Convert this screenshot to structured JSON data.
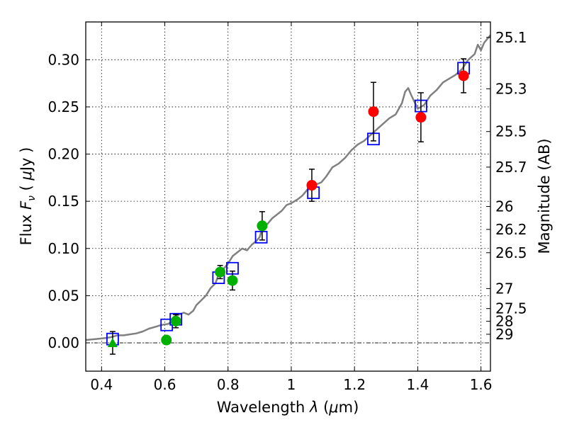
{
  "chart_data": {
    "type": "scatter",
    "xlabel": "Wavelength  λ (μm)",
    "ylabel": "Flux  F_ν  ( μJy )",
    "ylabel_right": "Magnitude (AB)",
    "xlim": [
      0.35,
      1.63
    ],
    "ylim": [
      -0.03,
      0.34
    ],
    "grid": true,
    "x_ticks": [
      {
        "value": 0.4,
        "label": "0.4"
      },
      {
        "value": 0.6,
        "label": "0.6"
      },
      {
        "value": 0.8,
        "label": "0.8"
      },
      {
        "value": 1.0,
        "label": "1"
      },
      {
        "value": 1.2,
        "label": "1.2"
      },
      {
        "value": 1.4,
        "label": "1.4"
      },
      {
        "value": 1.6,
        "label": "1.6"
      }
    ],
    "y_ticks": [
      {
        "value": 0.0,
        "label": "0.00"
      },
      {
        "value": 0.05,
        "label": "0.05"
      },
      {
        "value": 0.1,
        "label": "0.10"
      },
      {
        "value": 0.15,
        "label": "0.15"
      },
      {
        "value": 0.2,
        "label": "0.20"
      },
      {
        "value": 0.25,
        "label": "0.25"
      },
      {
        "value": 0.3,
        "label": "0.30"
      }
    ],
    "right_ticks": [
      {
        "flux": 0.3236,
        "label": "25.1"
      },
      {
        "flux": 0.2692,
        "label": "25.3"
      },
      {
        "flux": 0.2239,
        "label": "25.5"
      },
      {
        "flux": 0.1862,
        "label": "25.7"
      },
      {
        "flux": 0.1445,
        "label": "26"
      },
      {
        "flux": 0.1202,
        "label": "26.2"
      },
      {
        "flux": 0.0955,
        "label": "26.5"
      },
      {
        "flux": 0.0575,
        "label": "27"
      },
      {
        "flux": 0.0363,
        "label": "27.5"
      },
      {
        "flux": 0.0229,
        "label": "28"
      },
      {
        "flux": 0.0091,
        "label": "29"
      }
    ],
    "model_spectrum": {
      "color": "#808080",
      "points": [
        [
          0.35,
          0.003
        ],
        [
          0.38,
          0.004
        ],
        [
          0.41,
          0.005
        ],
        [
          0.43,
          0.006
        ],
        [
          0.45,
          0.008
        ],
        [
          0.47,
          0.008
        ],
        [
          0.49,
          0.009
        ],
        [
          0.51,
          0.01
        ],
        [
          0.53,
          0.012
        ],
        [
          0.55,
          0.015
        ],
        [
          0.57,
          0.017
        ],
        [
          0.59,
          0.019
        ],
        [
          0.61,
          0.02
        ],
        [
          0.62,
          0.022
        ],
        [
          0.63,
          0.028
        ],
        [
          0.645,
          0.03
        ],
        [
          0.66,
          0.032
        ],
        [
          0.675,
          0.03
        ],
        [
          0.69,
          0.034
        ],
        [
          0.7,
          0.04
        ],
        [
          0.715,
          0.045
        ],
        [
          0.73,
          0.05
        ],
        [
          0.745,
          0.058
        ],
        [
          0.76,
          0.063
        ],
        [
          0.77,
          0.072
        ],
        [
          0.78,
          0.076
        ],
        [
          0.79,
          0.08
        ],
        [
          0.8,
          0.084
        ],
        [
          0.815,
          0.092
        ],
        [
          0.83,
          0.096
        ],
        [
          0.845,
          0.1
        ],
        [
          0.86,
          0.098
        ],
        [
          0.875,
          0.104
        ],
        [
          0.89,
          0.108
        ],
        [
          0.9,
          0.112
        ],
        [
          0.91,
          0.124
        ],
        [
          0.925,
          0.126
        ],
        [
          0.94,
          0.132
        ],
        [
          0.955,
          0.136
        ],
        [
          0.97,
          0.14
        ],
        [
          0.985,
          0.146
        ],
        [
          1.0,
          0.148
        ],
        [
          1.02,
          0.152
        ],
        [
          1.035,
          0.156
        ],
        [
          1.05,
          0.162
        ],
        [
          1.065,
          0.164
        ],
        [
          1.08,
          0.168
        ],
        [
          1.095,
          0.17
        ],
        [
          1.11,
          0.176
        ],
        [
          1.13,
          0.186
        ],
        [
          1.15,
          0.19
        ],
        [
          1.17,
          0.196
        ],
        [
          1.19,
          0.204
        ],
        [
          1.21,
          0.21
        ],
        [
          1.23,
          0.214
        ],
        [
          1.25,
          0.22
        ],
        [
          1.27,
          0.226
        ],
        [
          1.29,
          0.232
        ],
        [
          1.31,
          0.238
        ],
        [
          1.33,
          0.242
        ],
        [
          1.35,
          0.254
        ],
        [
          1.36,
          0.266
        ],
        [
          1.37,
          0.27
        ],
        [
          1.38,
          0.262
        ],
        [
          1.4,
          0.248
        ],
        [
          1.42,
          0.252
        ],
        [
          1.44,
          0.262
        ],
        [
          1.46,
          0.268
        ],
        [
          1.48,
          0.276
        ],
        [
          1.5,
          0.28
        ],
        [
          1.52,
          0.284
        ],
        [
          1.54,
          0.29
        ],
        [
          1.56,
          0.3
        ],
        [
          1.58,
          0.306
        ],
        [
          1.59,
          0.316
        ],
        [
          1.6,
          0.31
        ],
        [
          1.61,
          0.318
        ],
        [
          1.63,
          0.326
        ]
      ]
    },
    "model_bandpass": {
      "color": "#0000ff",
      "points": [
        {
          "x": 0.435,
          "y": 0.004
        },
        {
          "x": 0.606,
          "y": 0.019
        },
        {
          "x": 0.635,
          "y": 0.025
        },
        {
          "x": 0.77,
          "y": 0.069
        },
        {
          "x": 0.814,
          "y": 0.079
        },
        {
          "x": 0.905,
          "y": 0.112
        },
        {
          "x": 1.07,
          "y": 0.159
        },
        {
          "x": 1.26,
          "y": 0.216
        },
        {
          "x": 1.41,
          "y": 0.251
        },
        {
          "x": 1.545,
          "y": 0.291
        }
      ]
    },
    "observed_optical": {
      "color": "#00b000",
      "points": [
        {
          "x": 0.605,
          "y": 0.003,
          "err": 0.0
        },
        {
          "x": 0.635,
          "y": 0.023,
          "err": 0.007
        },
        {
          "x": 0.775,
          "y": 0.075,
          "err": 0.007
        },
        {
          "x": 0.814,
          "y": 0.066,
          "err": 0.01
        },
        {
          "x": 0.908,
          "y": 0.124,
          "err": 0.015
        }
      ],
      "upper_limit": {
        "x": 0.435,
        "y": 0.0,
        "err": 0.012
      }
    },
    "observed_nir": {
      "color": "#ff0000",
      "points": [
        {
          "x": 1.065,
          "y": 0.167,
          "err": 0.017
        },
        {
          "x": 1.26,
          "y": 0.245,
          "err": 0.031
        },
        {
          "x": 1.41,
          "y": 0.239,
          "err": 0.026
        },
        {
          "x": 1.545,
          "y": 0.283,
          "err": 0.018
        }
      ]
    }
  }
}
